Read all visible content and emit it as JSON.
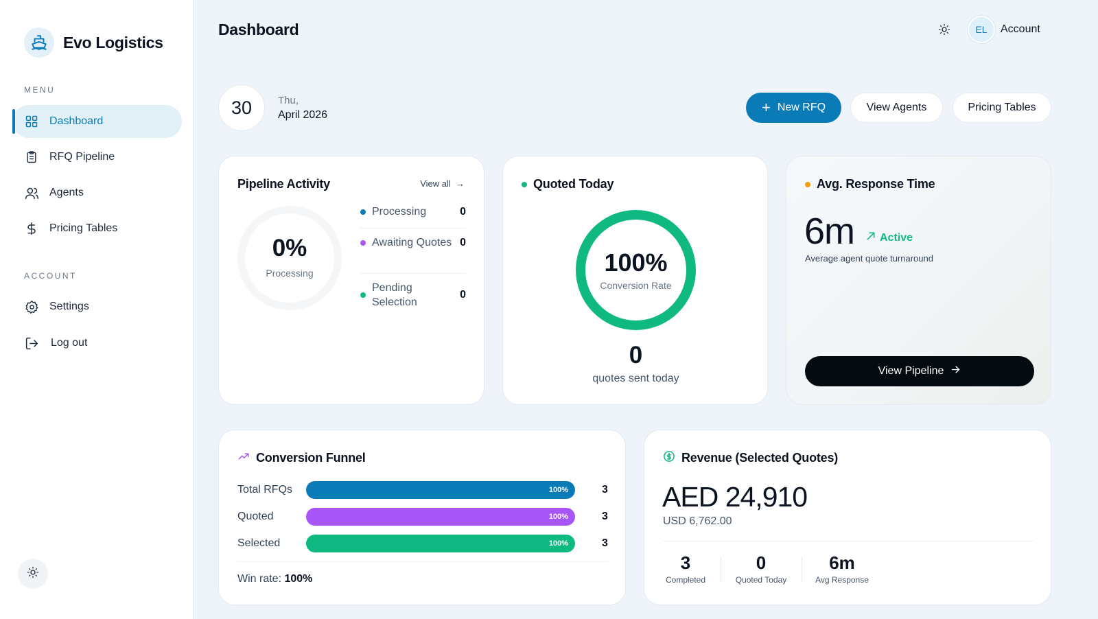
{
  "app": {
    "name": "Evo Logistics"
  },
  "sidebar": {
    "menu_label": "MENU",
    "account_label": "ACCOUNT",
    "menu_items": [
      {
        "label": "Dashboard",
        "icon": "grid-icon",
        "active": true
      },
      {
        "label": "RFQ Pipeline",
        "icon": "clipboard-icon",
        "active": false
      },
      {
        "label": "Agents",
        "icon": "users-icon",
        "active": false
      },
      {
        "label": "Pricing Tables",
        "icon": "dollar-icon",
        "active": false
      }
    ],
    "account_items": [
      {
        "label": "Settings",
        "icon": "gear-icon"
      },
      {
        "label": "Log out",
        "icon": "logout-icon"
      }
    ]
  },
  "header": {
    "title": "Dashboard",
    "avatar_initials": "EL",
    "account_label": "Account"
  },
  "date": {
    "day": "30",
    "weekday": "Thu,",
    "month_year": "April 2026"
  },
  "actions": {
    "new_rfq": "New RFQ",
    "view_agents": "View Agents",
    "pricing_tables": "Pricing Tables"
  },
  "pipeline_activity": {
    "title": "Pipeline Activity",
    "view_all": "View all",
    "percent": "0%",
    "percent_label": "Processing",
    "stats": [
      {
        "label": "Processing",
        "value": "0",
        "color": "#0a7bb6"
      },
      {
        "label": "Awaiting Quotes",
        "value": "0",
        "color": "#a855f7"
      },
      {
        "label": "Pending Selection",
        "value": "0",
        "color": "#10b981"
      }
    ]
  },
  "quoted_today": {
    "title": "Quoted Today",
    "dot_color": "#10b981",
    "rate": "100%",
    "rate_label": "Conversion Rate",
    "count": "0",
    "count_label": "quotes sent today"
  },
  "avg_response": {
    "title": "Avg. Response Time",
    "dot_color": "#f59e0b",
    "value": "6m",
    "status": "Active",
    "subtitle": "Average agent quote turnaround",
    "button": "View Pipeline"
  },
  "conversion_funnel": {
    "title": "Conversion Funnel",
    "rows": [
      {
        "label": "Total RFQs",
        "percent": "100%",
        "fraction": 1.0,
        "count": "3",
        "color": "#0a7bb6"
      },
      {
        "label": "Quoted",
        "percent": "100%",
        "fraction": 1.0,
        "count": "3",
        "color": "#a855f7"
      },
      {
        "label": "Selected",
        "percent": "100%",
        "fraction": 1.0,
        "count": "3",
        "color": "#10b981"
      }
    ],
    "win_rate_label": "Win rate:",
    "win_rate_value": "100%"
  },
  "revenue": {
    "title": "Revenue (Selected Quotes)",
    "amount": "AED 24,910",
    "usd": "USD 6,762.00",
    "stats": [
      {
        "value": "3",
        "label": "Completed"
      },
      {
        "value": "0",
        "label": "Quoted Today"
      },
      {
        "value": "6m",
        "label": "Avg Response"
      }
    ]
  }
}
